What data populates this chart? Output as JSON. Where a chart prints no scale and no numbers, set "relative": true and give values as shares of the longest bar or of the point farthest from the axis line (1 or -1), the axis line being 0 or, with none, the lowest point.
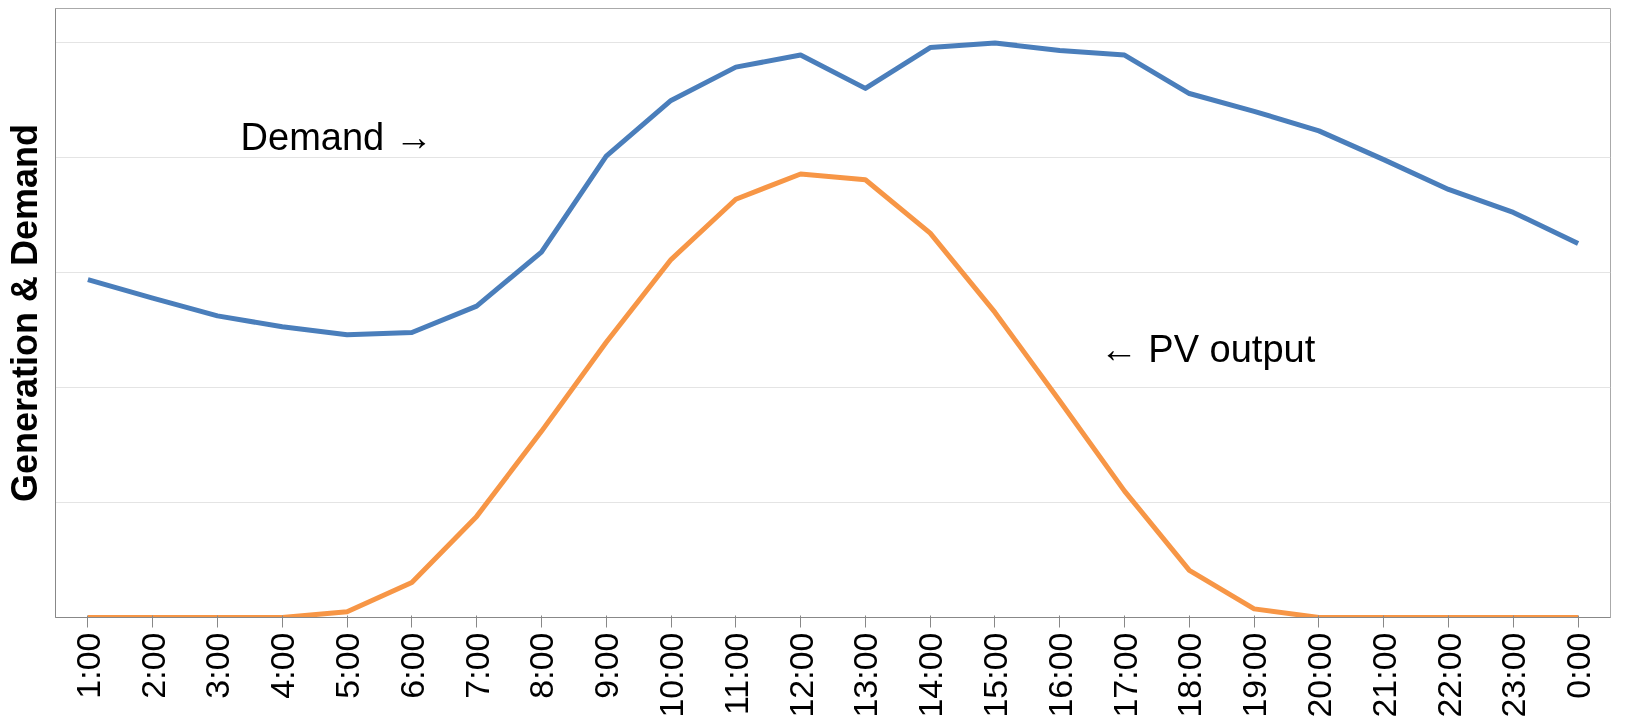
{
  "chart_data": {
    "type": "line",
    "relative": true,
    "ylabel": "Generation & Demand",
    "categories": [
      "1:00",
      "2:00",
      "3:00",
      "4:00",
      "5:00",
      "6:00",
      "7:00",
      "8:00",
      "9:00",
      "10:00",
      "11:00",
      "12:00",
      "13:00",
      "14:00",
      "15:00",
      "16:00",
      "17:00",
      "18:00",
      "19:00",
      "20:00",
      "21:00",
      "22:00",
      "23:00",
      "0:00"
    ],
    "series": [
      {
        "color": "#4a7ebb",
        "values": [
          0.588,
          0.556,
          0.525,
          0.506,
          0.492,
          0.496,
          0.542,
          0.636,
          0.803,
          0.9,
          0.958,
          0.979,
          0.921,
          0.992,
          1,
          0.987,
          0.979,
          0.912,
          0.881,
          0.847,
          0.797,
          0.745,
          0.705,
          0.651
        ]
      },
      {
        "color": "#f79646",
        "values": [
          0,
          0,
          0,
          0,
          0.01,
          0.061,
          0.176,
          0.324,
          0.479,
          0.623,
          0.728,
          0.772,
          0.762,
          0.669,
          0.531,
          0.377,
          0.22,
          0.082,
          0.015,
          0,
          0,
          0,
          0,
          0
        ]
      }
    ],
    "annotations": [
      "Demand →",
      "← PV output"
    ],
    "grid": "y",
    "marker": "none",
    "line_style": "solid"
  }
}
